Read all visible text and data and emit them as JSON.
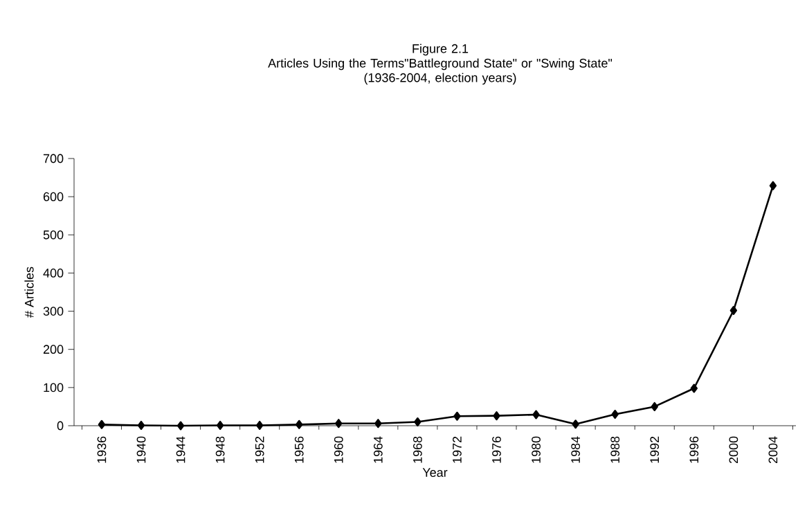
{
  "chart_data": {
    "type": "line",
    "title": "Figure 2.1",
    "subtitle": "Articles Using the Terms\"Battleground State\" or \"Swing State\"",
    "annotations": [
      "(1936-2004, election years)"
    ],
    "xlabel": "Year",
    "ylabel": "# Articles",
    "categories": [
      "1936",
      "1940",
      "1944",
      "1948",
      "1952",
      "1956",
      "1960",
      "1964",
      "1968",
      "1972",
      "1976",
      "1980",
      "1984",
      "1988",
      "1992",
      "1996",
      "2000",
      "2004"
    ],
    "values": [
      3,
      1,
      0,
      1,
      1,
      3,
      6,
      6,
      10,
      25,
      26,
      29,
      4,
      30,
      50,
      98,
      302,
      629
    ],
    "color": "#000000",
    "marker": "diamond",
    "line_style": "solid",
    "ylim": [
      0,
      700
    ],
    "yticks": [
      0,
      100,
      200,
      300,
      400,
      500,
      600,
      700
    ]
  }
}
